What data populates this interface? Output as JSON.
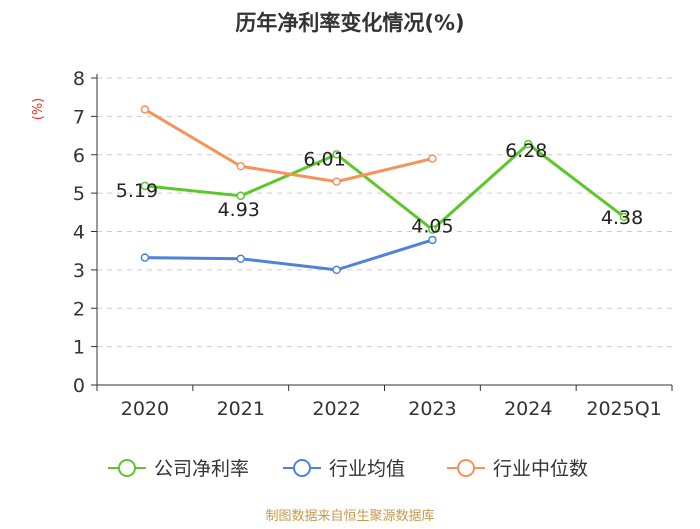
{
  "chart_data": {
    "type": "line",
    "title": "历年净利率变化情况(%)",
    "ylabel": "(%)",
    "xlabel": "",
    "categories": [
      "2020",
      "2021",
      "2022",
      "2023",
      "2024",
      "2025Q1"
    ],
    "ylim": [
      0,
      8
    ],
    "yticks": [
      0,
      1,
      2,
      3,
      4,
      5,
      6,
      7,
      8
    ],
    "grid": true,
    "legend_position": "bottom",
    "series": [
      {
        "name": "公司净利率",
        "color": "#5cc72b",
        "values": [
          5.19,
          4.93,
          6.01,
          4.05,
          6.28,
          4.38
        ],
        "data_labels": [
          "5.19",
          "4.93",
          "6.01",
          "4.05",
          "6.28",
          "4.38"
        ]
      },
      {
        "name": "行业均值",
        "color": "#4f82dd",
        "values": [
          3.32,
          3.29,
          3.0,
          3.78,
          null,
          null
        ]
      },
      {
        "name": "行业中位数",
        "color": "#f7935a",
        "values": [
          7.18,
          5.7,
          5.3,
          5.9,
          null,
          null
        ]
      }
    ],
    "footer": "制图数据来自恒生聚源数据库",
    "colors": {
      "ylabel": "#e8312f",
      "footer": "#c99a49",
      "axis": "#333333",
      "grid": "#cccccc",
      "title": "#333333"
    }
  }
}
